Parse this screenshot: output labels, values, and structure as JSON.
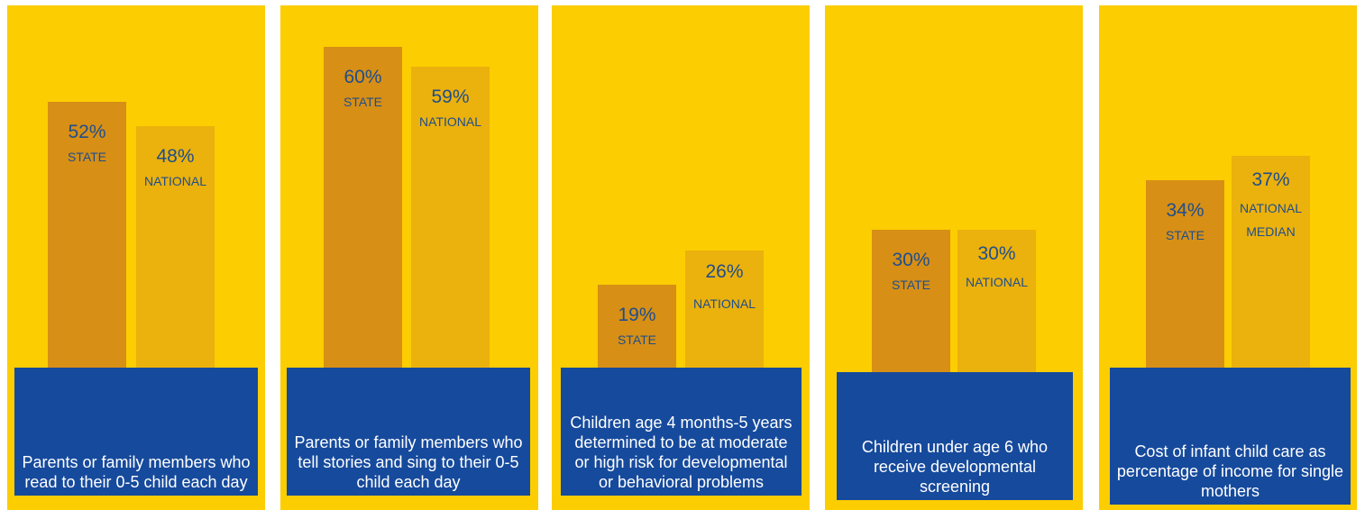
{
  "chart_data": [
    {
      "type": "bar",
      "categories": [
        "STATE",
        "NATIONAL"
      ],
      "values": [
        52,
        48
      ],
      "value_labels": [
        "52%",
        "48%"
      ],
      "bar_labels": [
        [
          "STATE"
        ],
        [
          "NATIONAL"
        ]
      ],
      "caption": "Parents or family members who read to their 0-5 child each day"
    },
    {
      "type": "bar",
      "categories": [
        "STATE",
        "NATIONAL"
      ],
      "values": [
        60,
        59
      ],
      "value_labels": [
        "60%",
        "59%"
      ],
      "bar_labels": [
        [
          "STATE"
        ],
        [
          "NATIONAL"
        ]
      ],
      "caption": "Parents or family members who tell stories and sing to their 0-5 child each day"
    },
    {
      "type": "bar",
      "categories": [
        "STATE",
        "NATIONAL"
      ],
      "values": [
        19,
        26
      ],
      "value_labels": [
        "19%",
        "26%"
      ],
      "bar_labels": [
        [
          "STATE"
        ],
        [
          "NATIONAL"
        ]
      ],
      "caption": "Children age 4 months-5 years determined to be at moderate or high risk for developmental or behavioral problems"
    },
    {
      "type": "bar",
      "categories": [
        "STATE",
        "NATIONAL"
      ],
      "values": [
        30,
        30
      ],
      "value_labels": [
        "30%",
        "30%"
      ],
      "bar_labels": [
        [
          "STATE"
        ],
        [
          "NATIONAL"
        ]
      ],
      "caption": "Children under age 6 who receive developmental screening"
    },
    {
      "type": "bar",
      "categories": [
        "STATE",
        "NATIONAL MEDIAN"
      ],
      "values": [
        34,
        37
      ],
      "value_labels": [
        "34%",
        "37%"
      ],
      "bar_labels": [
        [
          "STATE"
        ],
        [
          "NATIONAL",
          "MEDIAN"
        ]
      ],
      "caption": "Cost of infant child care as percentage of income for single mothers"
    }
  ],
  "colors": {
    "background": "#fccd00",
    "state_bar": "#d78f16",
    "national_bar": "#ebb10d",
    "caption_box": "#164a9c",
    "value_text": "#1f4e8c",
    "caption_text": "#ffffff"
  }
}
